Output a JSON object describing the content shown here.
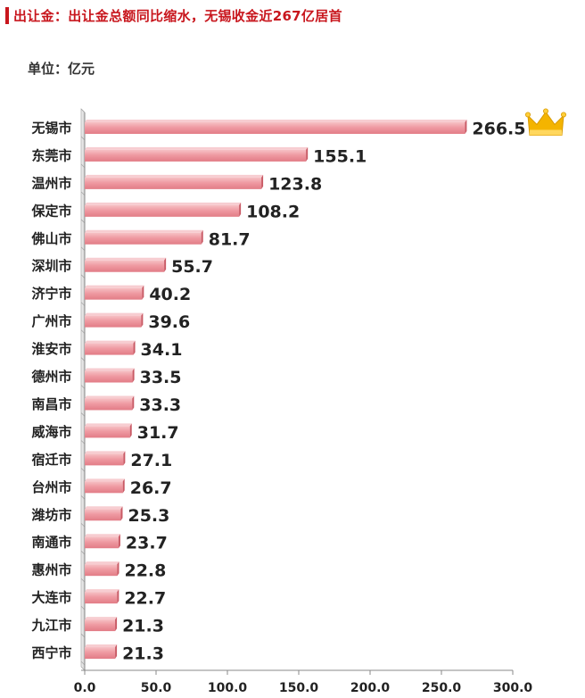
{
  "header": {
    "title": "出让金：出让金总额同比缩水，无锡收金近267亿居首"
  },
  "unit_label": "单位：亿元",
  "colors": {
    "title": "#c8161d",
    "bar_light": "#f2a9ae",
    "bar_dark": "#d9606b",
    "crown": "#f4b400"
  },
  "chart_data": {
    "type": "bar",
    "orientation": "horizontal",
    "categories": [
      "无锡市",
      "东莞市",
      "温州市",
      "保定市",
      "佛山市",
      "深圳市",
      "济宁市",
      "广州市",
      "淮安市",
      "德州市",
      "南昌市",
      "威海市",
      "宿迁市",
      "台州市",
      "潍坊市",
      "南通市",
      "惠州市",
      "大连市",
      "九江市",
      "西宁市"
    ],
    "values": [
      266.5,
      155.1,
      123.8,
      108.2,
      81.7,
      55.7,
      40.2,
      39.6,
      34.1,
      33.5,
      33.3,
      31.7,
      27.1,
      26.7,
      25.3,
      23.7,
      22.8,
      22.7,
      21.3,
      21.3
    ],
    "value_labels": [
      "266.5",
      "155.1",
      "123.8",
      "108.2",
      "81.7",
      "55.7",
      "40.2",
      "39.6",
      "34.1",
      "33.5",
      "33.3",
      "31.7",
      "27.1",
      "26.7",
      "25.3",
      "23.7",
      "22.8",
      "22.7",
      "21.3",
      "21.3"
    ],
    "xlim": [
      0,
      300
    ],
    "x_ticks": [
      "0.0",
      "50.0",
      "100.0",
      "150.0",
      "200.0",
      "250.0",
      "300.0"
    ],
    "annotations": [
      {
        "type": "crown-icon",
        "category": "无锡市"
      }
    ]
  }
}
